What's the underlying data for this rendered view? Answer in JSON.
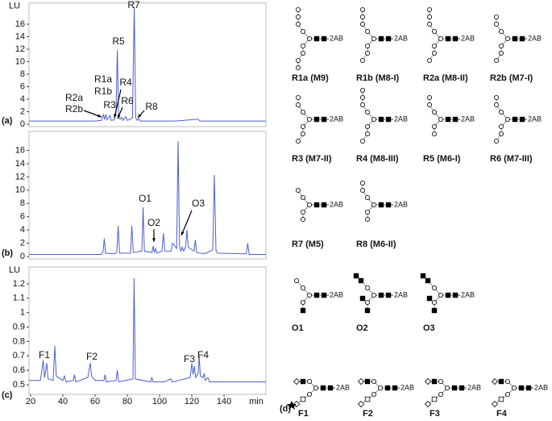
{
  "chart_data": [
    {
      "type": "line",
      "panel_label": "(a)",
      "y_label": "LU",
      "x": [
        19,
        60,
        64,
        65.2,
        66,
        66.7,
        67.5,
        69.2,
        70,
        72,
        73,
        73.8,
        74.6,
        75.5,
        76.5,
        77.3,
        79,
        80,
        83.2,
        84.3,
        85.2,
        86.2,
        87,
        88,
        110,
        124,
        125,
        166
      ],
      "series": [
        {
          "color": "#4a5fd0",
          "values": [
            0.5,
            0.5,
            0.6,
            1.5,
            0.8,
            1.6,
            0.7,
            1.4,
            0.6,
            0.7,
            2,
            11.9,
            1.2,
            0.8,
            1.1,
            0.6,
            1.2,
            0.6,
            1,
            18.8,
            1,
            0.6,
            0.9,
            0.5,
            0.5,
            0.8,
            0.5,
            0.5
          ]
        }
      ],
      "xlim": [
        19,
        166
      ],
      "ylim": [
        0,
        19
      ],
      "yticks": [
        0,
        2,
        4,
        6,
        8,
        10,
        12,
        14,
        16
      ],
      "annotations": [
        "R7",
        "R5",
        "R1a",
        "R1b",
        "R4",
        "R2a",
        "R2b",
        "R3",
        "R6",
        "R8"
      ]
    },
    {
      "type": "line",
      "panel_label": "(b)",
      "x": [
        19,
        64,
        65,
        65.7,
        66.5,
        72,
        73.5,
        74.3,
        75.2,
        82,
        82.8,
        83.7,
        89,
        89.8,
        90.6,
        95.3,
        96,
        96.7,
        97.5,
        98.2,
        101.5,
        102.4,
        103.3,
        107.2,
        108,
        108.8,
        110.6,
        111.5,
        112.4,
        113.3,
        114,
        115,
        116.2,
        117,
        117.8,
        121.4,
        122.2,
        123,
        128,
        133,
        134,
        135,
        136,
        153.8,
        154.7,
        155.6,
        166
      ],
      "series": [
        {
          "color": "#4a5fd0",
          "values": [
            0.3,
            0.3,
            0.8,
            2.7,
            0.5,
            0.4,
            0.6,
            4.6,
            0.5,
            0.5,
            4.6,
            0.6,
            0.8,
            7.4,
            0.8,
            0.6,
            1.6,
            0.6,
            1.2,
            0.5,
            0.8,
            3.5,
            0.8,
            0.8,
            2,
            1.8,
            1.2,
            17.4,
            1.5,
            0.8,
            1.4,
            0.8,
            1.5,
            4,
            1.4,
            0.8,
            2.5,
            0.6,
            0.4,
            1,
            12.3,
            0.9,
            0.5,
            0.4,
            2,
            0.3,
            0.3
          ]
        }
      ],
      "xlim": [
        19,
        166
      ],
      "ylim": [
        0,
        18.5
      ],
      "yticks": [
        0,
        2,
        4,
        6,
        8,
        10,
        12,
        14,
        16
      ],
      "annotations": [
        "O1",
        "O2",
        "O3"
      ]
    },
    {
      "type": "line",
      "panel_label": "(c)",
      "y_label": "LU",
      "x_label": "min",
      "x": [
        19,
        26,
        27,
        27.8,
        28.6,
        29.4,
        30,
        30.8,
        34,
        35,
        35.9,
        40,
        41,
        42,
        46.5,
        47.2,
        48,
        55.5,
        56.2,
        57,
        57.8,
        60,
        65.5,
        66.2,
        67,
        73,
        73.8,
        74.6,
        83.5,
        84.2,
        85,
        94.5,
        95.2,
        96,
        103,
        107,
        108,
        112,
        119,
        120,
        120.8,
        121.6,
        122.4,
        124,
        124.6,
        125.3,
        127,
        127.6,
        128.4,
        130,
        131,
        166
      ],
      "series": [
        {
          "color": "#4a5fd0",
          "values": [
            0.53,
            0.53,
            0.6,
            0.67,
            0.55,
            0.6,
            0.65,
            0.54,
            0.53,
            0.77,
            0.56,
            0.53,
            0.56,
            0.52,
            0.53,
            0.57,
            0.52,
            0.55,
            0.6,
            0.65,
            0.56,
            0.53,
            0.53,
            0.57,
            0.52,
            0.53,
            0.6,
            0.52,
            0.54,
            1.24,
            0.54,
            0.52,
            0.55,
            0.52,
            0.52,
            0.54,
            0.52,
            0.53,
            0.55,
            0.65,
            0.57,
            0.63,
            0.55,
            0.58,
            0.7,
            0.56,
            0.55,
            0.58,
            0.53,
            0.55,
            0.52,
            0.52
          ]
        }
      ],
      "xlim": [
        19,
        166
      ],
      "ylim": [
        0.45,
        1.3
      ],
      "yticks": [
        0.5,
        0.6,
        0.7,
        0.8,
        0.9,
        1,
        1.1,
        1.2
      ],
      "xticks": [
        20,
        40,
        60,
        80,
        100,
        120,
        140
      ],
      "annotations": [
        "F1",
        "F2",
        "F3",
        "F4"
      ]
    }
  ],
  "structures": {
    "panel_label": "(d)",
    "items": [
      {
        "label": "R1a (M9)",
        "tag": "2AB"
      },
      {
        "label": "R1b (M8-I)",
        "tag": "2AB"
      },
      {
        "label": "R2a (M8-II)",
        "tag": "2AB"
      },
      {
        "label": "R2b (M7-I)",
        "tag": "2AB"
      },
      {
        "label": "R3 (M7-II)",
        "tag": "2AB"
      },
      {
        "label": "R4 (M8-III)",
        "tag": "2AB"
      },
      {
        "label": "R5 (M6-I)",
        "tag": "2AB"
      },
      {
        "label": "R6 (M7-III)",
        "tag": "2AB"
      },
      {
        "label": "R7 (M5)",
        "tag": "2AB"
      },
      {
        "label": "R8 (M6-II)",
        "tag": "2AB"
      },
      {
        "label": "O1",
        "tag": "2AB"
      },
      {
        "label": "O2",
        "tag": "2AB"
      },
      {
        "label": "O3",
        "tag": "2AB"
      },
      {
        "label": "F1",
        "tag": "2AB"
      },
      {
        "label": "F2",
        "tag": "2AB"
      },
      {
        "label": "F3",
        "tag": "2AB"
      },
      {
        "label": "F4",
        "tag": "2AB"
      }
    ]
  }
}
